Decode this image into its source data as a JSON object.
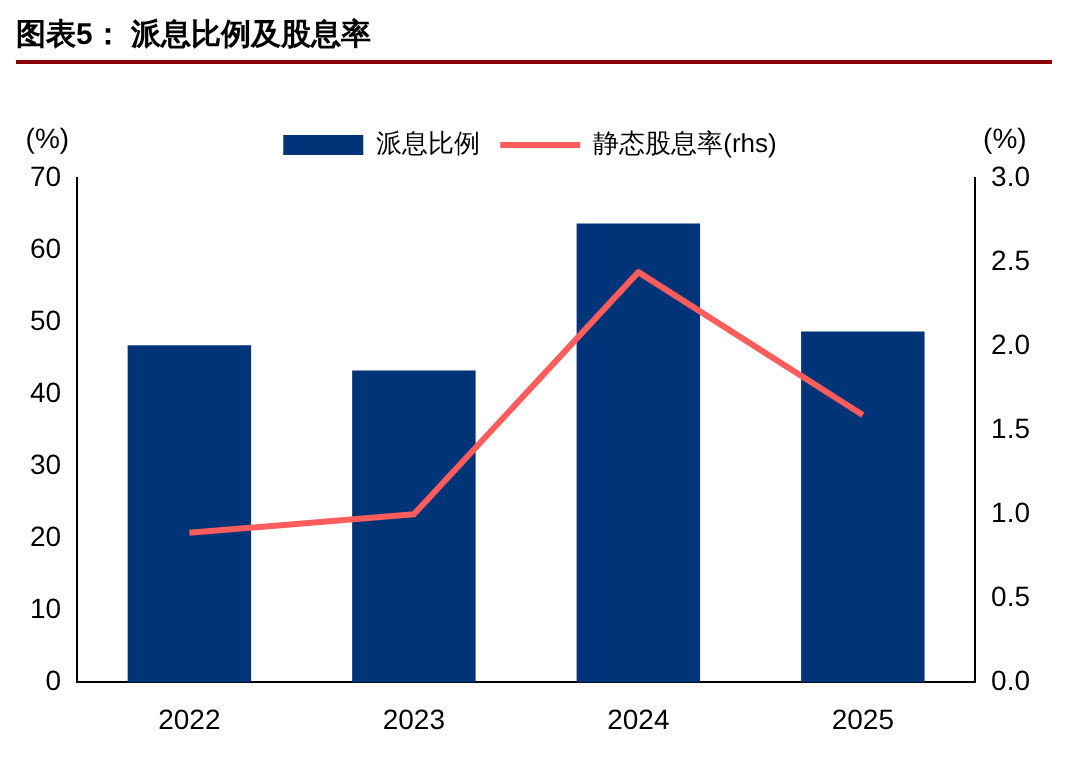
{
  "chart_data": {
    "type": "bar",
    "title": "图表5：  派息比例及股息率",
    "ylabel": "(%)",
    "y2label": "(%)",
    "categories": [
      "2022",
      "2023",
      "2024",
      "2025"
    ],
    "series": [
      {
        "name": "派息比例",
        "color": "#003478",
        "values": [
          46.8,
          43.3,
          63.7,
          48.7
        ]
      },
      {
        "name": "静态股息率(rhs)",
        "type": "line",
        "axis": "y2",
        "color": "#ff5c5c",
        "values": [
          0.89,
          1.0,
          2.44,
          1.59
        ]
      }
    ],
    "ylim": [
      0,
      70
    ],
    "yticks": [
      0,
      10,
      20,
      30,
      40,
      50,
      60,
      70
    ],
    "y2lim": [
      0,
      3
    ],
    "y2ticks": [
      {
        "value": 0,
        "label": "0.0"
      },
      {
        "value": 0.5,
        "label": "0.5"
      },
      {
        "value": 1,
        "label": "1.0"
      },
      {
        "value": 1.5,
        "label": "1.5"
      },
      {
        "value": 2,
        "label": "2.0"
      },
      {
        "value": 2.5,
        "label": "2.5"
      },
      {
        "value": 3,
        "label": "3.0"
      }
    ],
    "grid": false,
    "legend": "top",
    "marker": "none",
    "line_style": "solid"
  }
}
